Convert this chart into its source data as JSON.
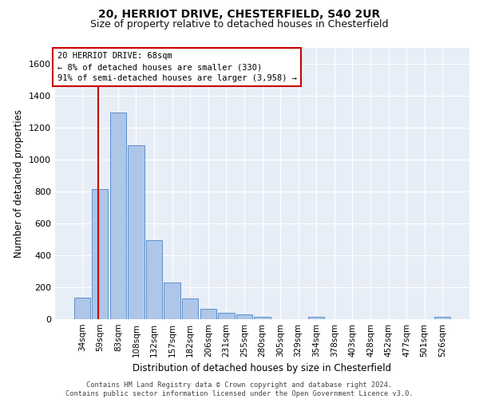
{
  "title_line1": "20, HERRIOT DRIVE, CHESTERFIELD, S40 2UR",
  "title_line2": "Size of property relative to detached houses in Chesterfield",
  "xlabel": "Distribution of detached houses by size in Chesterfield",
  "ylabel": "Number of detached properties",
  "footer_line1": "Contains HM Land Registry data © Crown copyright and database right 2024.",
  "footer_line2": "Contains public sector information licensed under the Open Government Licence v3.0.",
  "categories": [
    "34sqm",
    "59sqm",
    "83sqm",
    "108sqm",
    "132sqm",
    "157sqm",
    "182sqm",
    "206sqm",
    "231sqm",
    "255sqm",
    "280sqm",
    "305sqm",
    "329sqm",
    "354sqm",
    "378sqm",
    "403sqm",
    "428sqm",
    "452sqm",
    "477sqm",
    "501sqm",
    "526sqm"
  ],
  "bar_values": [
    135,
    815,
    1295,
    1090,
    495,
    230,
    130,
    65,
    38,
    28,
    15,
    0,
    0,
    15,
    0,
    0,
    0,
    0,
    0,
    0,
    15
  ],
  "bar_color": "#aec6e8",
  "bar_edge_color": "#5b8fc9",
  "annotation_box_text": "20 HERRIOT DRIVE: 68sqm\n← 8% of detached houses are smaller (330)\n91% of semi-detached houses are larger (3,958) →",
  "red_line_color": "#cc0000",
  "ylim": [
    0,
    1700
  ],
  "yticks": [
    0,
    200,
    400,
    600,
    800,
    1000,
    1200,
    1400,
    1600
  ],
  "background_color": "#e8eef7",
  "grid_color": "#ffffff",
  "title_fontsize": 10,
  "subtitle_fontsize": 9,
  "axis_label_fontsize": 8.5,
  "tick_fontsize": 7.5,
  "annot_fontsize": 7.5
}
